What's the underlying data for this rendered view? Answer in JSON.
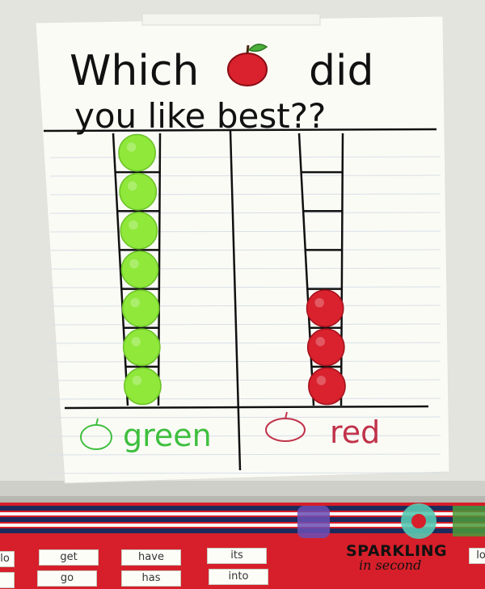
{
  "chart_title": {
    "line1_before": "Which",
    "line1_after": "did",
    "line2": "you like best??"
  },
  "categories": [
    {
      "name": "green",
      "count": 7,
      "apple_color": "#8fe83a",
      "label_color": "#3fbf3f"
    },
    {
      "name": "red",
      "count": 3,
      "apple_color": "#d9222e",
      "label_color": "#c0334a"
    }
  ],
  "ladder_rungs": 7,
  "word_cards": [
    "get",
    "have",
    "its",
    "go",
    "has",
    "into",
    "lo",
    "lo"
  ],
  "watermark": {
    "line1": "SPARKLING",
    "line2": "in second"
  },
  "colors": {
    "paper": "#fbfbf6",
    "marker": "#111111",
    "bulletin_red": "#d61f2a",
    "bulletin_navy": "#1d2a5c"
  }
}
